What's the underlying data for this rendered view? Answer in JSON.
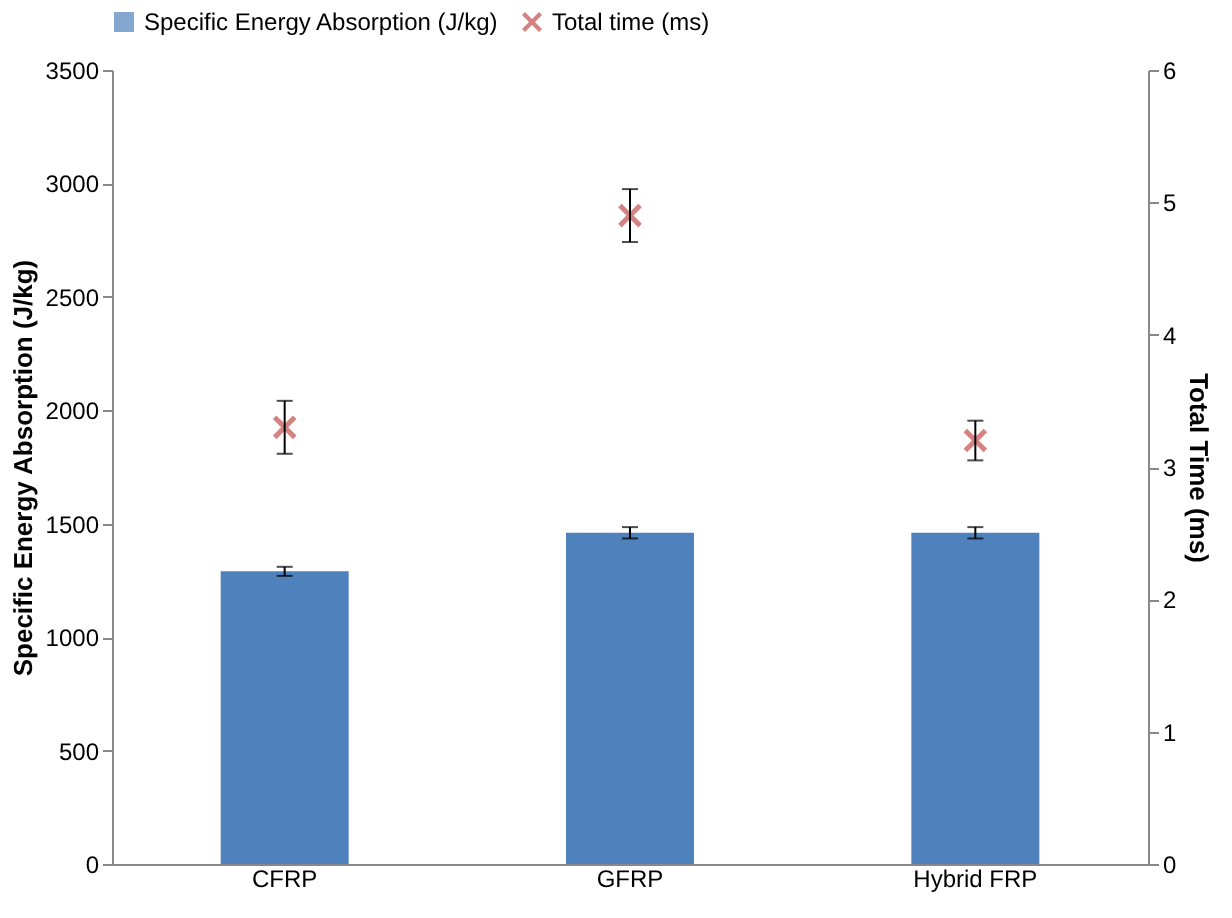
{
  "chart_data": {
    "type": "bar",
    "categories": [
      "CFRP",
      "GFRP",
      "Hybrid FRP"
    ],
    "ylabel": "Specific Energy Absorption (J/kg)",
    "y2label": "Total Time (ms)",
    "ylim": [
      0,
      3500
    ],
    "yticks": [
      0,
      500,
      1000,
      1500,
      2000,
      2500,
      3000,
      3500
    ],
    "y2lim": [
      0,
      6
    ],
    "y2ticks": [
      0,
      1,
      2,
      3,
      4,
      5,
      6
    ],
    "grid": false,
    "legend": "top",
    "series": [
      {
        "name": "Specific Energy Absorption (J/kg)",
        "color": "#4f81bd",
        "values": [
          1290,
          1460,
          1460
        ],
        "errors": [
          20,
          25,
          25
        ]
      },
      {
        "name": "Total time (ms)",
        "type": "scatter",
        "axis": "y2",
        "marker": "cross",
        "color": "#c0504d",
        "values": [
          3.3,
          4.9,
          3.2
        ],
        "errors": [
          0.2,
          0.2,
          0.15
        ]
      }
    ]
  }
}
